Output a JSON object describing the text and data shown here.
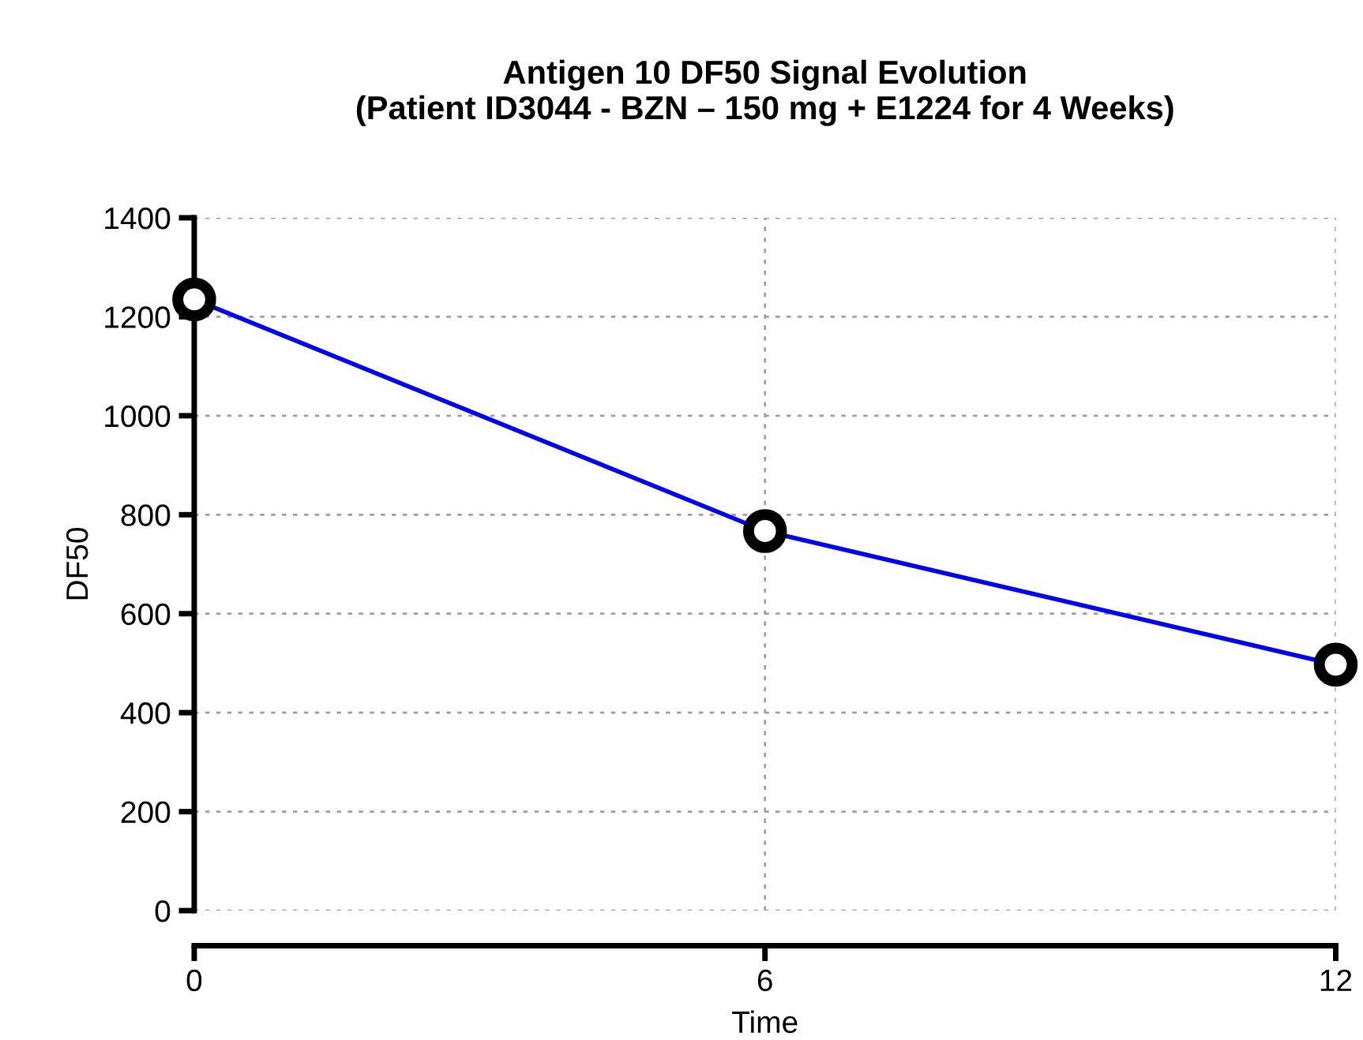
{
  "chart_data": {
    "type": "line",
    "title": "Antigen 10 DF50 Signal Evolution\n(Patient ID3044 - BZN – 150 mg + E1224 for 4 Weeks)",
    "xlabel": "Time",
    "ylabel": "DF50",
    "x": [
      0,
      6,
      12
    ],
    "series": [
      {
        "color": "#0000ff",
        "values": [
          1235,
          767,
          497
        ]
      }
    ],
    "xlim": [
      0,
      12
    ],
    "xticks": [
      0,
      6,
      12
    ],
    "ylim": [
      0,
      1400
    ],
    "yticks": [
      0,
      200,
      400,
      600,
      800,
      1000,
      1200,
      1400
    ],
    "grid": true,
    "marker": "circle",
    "line_style": "solid",
    "legend": false
  }
}
